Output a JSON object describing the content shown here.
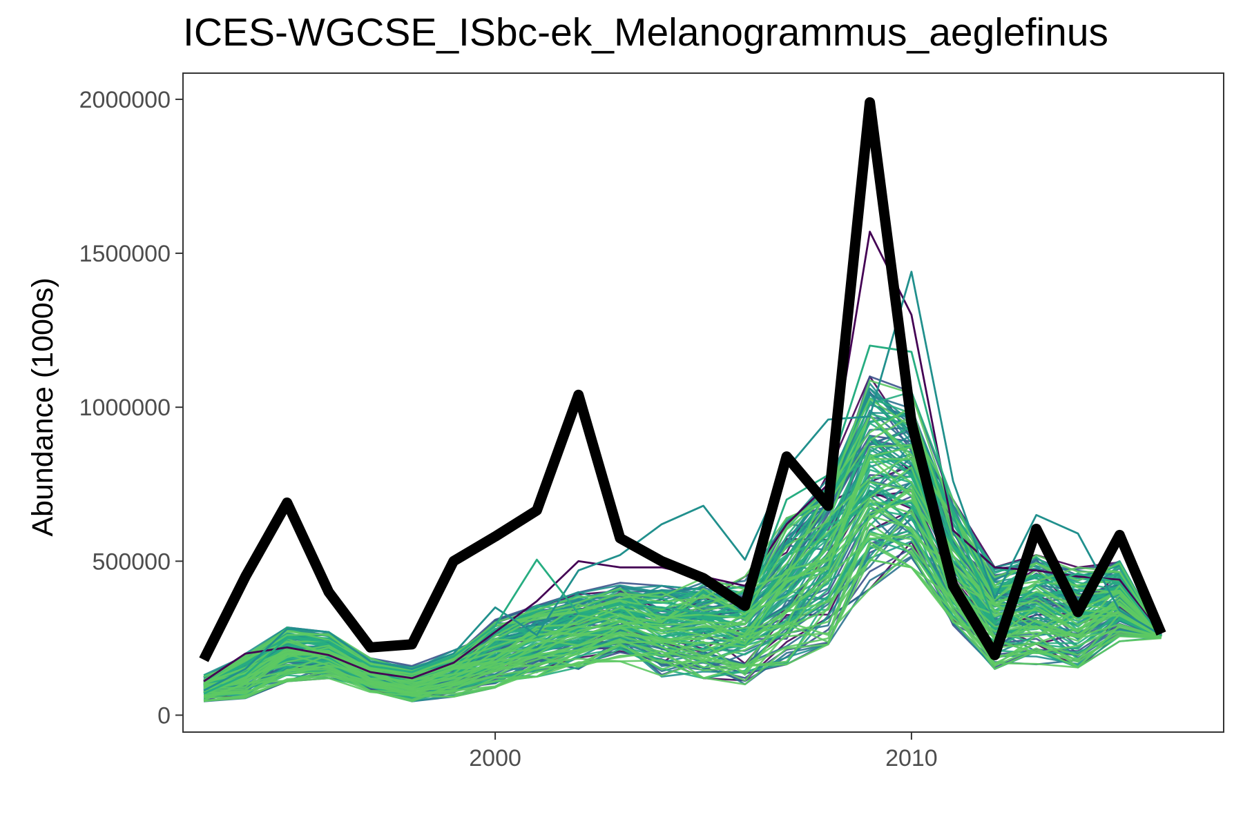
{
  "chart_data": {
    "type": "line",
    "title": "ICES-WGCSE_ISbc-ek_Melanogrammus_aeglefinus",
    "xlabel": "",
    "ylabel": "Abundance (1000s)",
    "xlim": [
      1992.5,
      2017.5
    ],
    "ylim": [
      -55000,
      2085000
    ],
    "x_ticks": [
      2000,
      2010
    ],
    "x_tick_labels": [
      "2000",
      "2010"
    ],
    "y_ticks": [
      0,
      500000,
      1000000,
      1500000,
      2000000
    ],
    "y_tick_labels": [
      "0",
      "500000",
      "1000000",
      "1500000",
      "2000000"
    ],
    "grid": false,
    "legend": "none",
    "x": [
      1993,
      1994,
      1995,
      1996,
      1997,
      1998,
      1999,
      2000,
      2001,
      2002,
      2003,
      2004,
      2005,
      2006,
      2007,
      2008,
      2009,
      2010,
      2011,
      2012,
      2013,
      2014,
      2015,
      2016
    ],
    "observed": {
      "color": "#000000",
      "values": [
        180000,
        450000,
        690000,
        400000,
        220000,
        230000,
        500000,
        580000,
        665000,
        1040000,
        575000,
        500000,
        445000,
        355000,
        840000,
        680000,
        1990000,
        950000,
        420000,
        195000,
        605000,
        335000,
        585000,
        265000
      ]
    },
    "ensemble": {
      "count": 120,
      "palette": [
        "#440154",
        "#3b528b",
        "#2c728e",
        "#21908d",
        "#27ad81",
        "#5dc963"
      ],
      "envelope_low": [
        45000,
        55000,
        110000,
        120000,
        75000,
        45000,
        60000,
        90000,
        125000,
        150000,
        175000,
        125000,
        120000,
        100000,
        165000,
        230000,
        410000,
        480000,
        280000,
        150000,
        165000,
        155000,
        240000,
        250000
      ],
      "envelope_high": [
        130000,
        200000,
        285000,
        270000,
        185000,
        160000,
        210000,
        310000,
        360000,
        400000,
        430000,
        420000,
        445000,
        450000,
        640000,
        810000,
        1100000,
        1050000,
        700000,
        480000,
        520000,
        480000,
        500000,
        260000
      ],
      "highlights": [
        {
          "color": "#440154",
          "values": [
            110000,
            200000,
            220000,
            195000,
            140000,
            120000,
            170000,
            270000,
            370000,
            500000,
            480000,
            480000,
            450000,
            420000,
            620000,
            750000,
            1570000,
            1300000,
            600000,
            480000,
            470000,
            450000,
            440000,
            262000
          ]
        },
        {
          "color": "#21908d",
          "values": [
            80000,
            150000,
            280000,
            270000,
            175000,
            150000,
            200000,
            350000,
            260000,
            470000,
            520000,
            620000,
            680000,
            505000,
            800000,
            960000,
            970000,
            1440000,
            760000,
            380000,
            650000,
            590000,
            340000,
            260000
          ]
        },
        {
          "color": "#27ad81",
          "values": [
            70000,
            130000,
            250000,
            240000,
            160000,
            140000,
            190000,
            290000,
            505000,
            330000,
            360000,
            350000,
            330000,
            340000,
            700000,
            780000,
            1200000,
            1180000,
            650000,
            300000,
            420000,
            460000,
            430000,
            258000
          ]
        }
      ]
    }
  }
}
